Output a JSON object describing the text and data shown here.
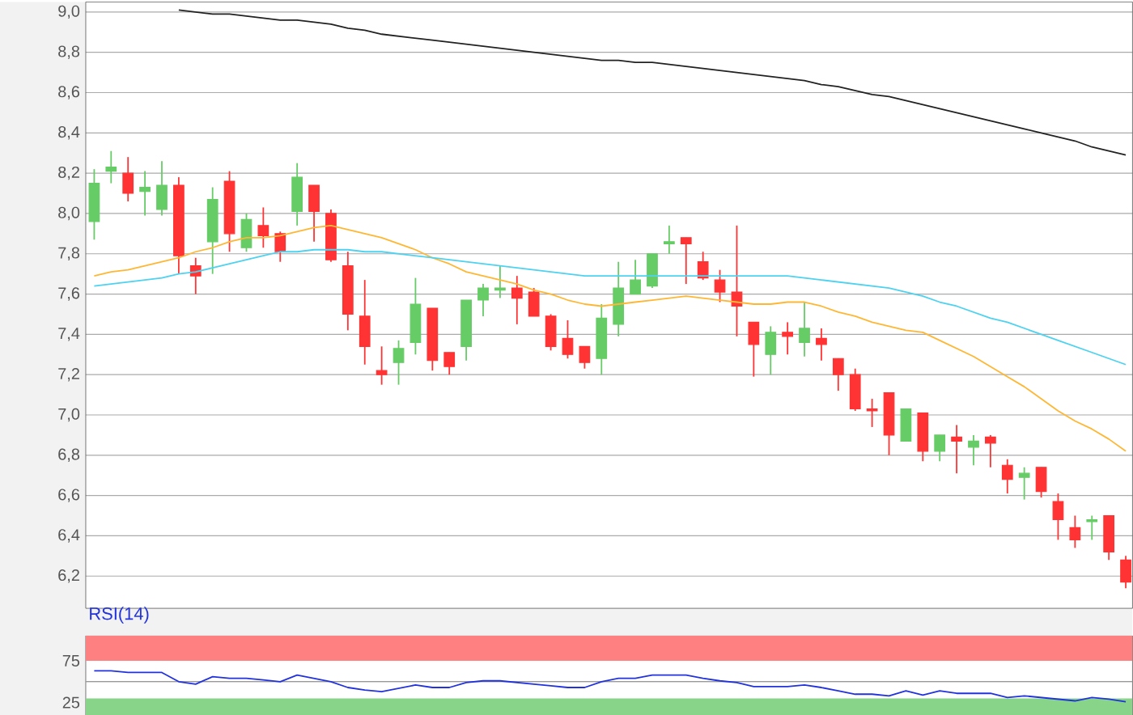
{
  "chart_data": [
    {
      "type": "candlestick",
      "categories": [
        null,
        null,
        null,
        null,
        null,
        null,
        null,
        null,
        null,
        null,
        null,
        null,
        null,
        null,
        null,
        null,
        null,
        null,
        null,
        null,
        null,
        null,
        null,
        null,
        null,
        null,
        null,
        null,
        null,
        null,
        null,
        null,
        null,
        null,
        null,
        null,
        null,
        null,
        null,
        null,
        null,
        null,
        null,
        null,
        null,
        null,
        null,
        null,
        null,
        null,
        null,
        null,
        null,
        null,
        null,
        null,
        null,
        null,
        null,
        null,
        null,
        null
      ],
      "ohlc": [
        [
          7.96,
          8.22,
          7.87,
          8.15
        ],
        [
          8.21,
          8.31,
          8.15,
          8.23
        ],
        [
          8.2,
          8.28,
          8.06,
          8.1
        ],
        [
          8.11,
          8.21,
          7.99,
          8.13
        ],
        [
          8.02,
          8.26,
          7.99,
          8.14
        ],
        [
          8.14,
          8.18,
          7.7,
          7.79
        ],
        [
          7.74,
          7.78,
          7.6,
          7.69
        ],
        [
          7.86,
          8.13,
          7.7,
          8.07
        ],
        [
          8.16,
          8.21,
          7.81,
          7.9
        ],
        [
          7.83,
          8.0,
          7.81,
          7.97
        ],
        [
          7.94,
          8.03,
          7.83,
          7.89
        ],
        [
          7.9,
          7.91,
          7.76,
          7.81
        ],
        [
          8.01,
          8.25,
          7.94,
          8.18
        ],
        [
          8.14,
          8.14,
          7.86,
          8.01
        ],
        [
          8.0,
          8.02,
          7.76,
          7.77
        ],
        [
          7.74,
          7.81,
          7.42,
          7.5
        ],
        [
          7.49,
          7.67,
          7.25,
          7.34
        ],
        [
          7.22,
          7.34,
          7.15,
          7.2
        ],
        [
          7.26,
          7.37,
          7.15,
          7.33
        ],
        [
          7.36,
          7.68,
          7.3,
          7.55
        ],
        [
          7.53,
          7.53,
          7.22,
          7.27
        ],
        [
          7.31,
          7.31,
          7.2,
          7.24
        ],
        [
          7.34,
          7.57,
          7.27,
          7.57
        ],
        [
          7.57,
          7.65,
          7.49,
          7.63
        ],
        [
          7.62,
          7.74,
          7.58,
          7.63
        ],
        [
          7.63,
          7.69,
          7.45,
          7.58
        ],
        [
          7.61,
          7.63,
          7.49,
          7.49
        ],
        [
          7.49,
          7.5,
          7.32,
          7.34
        ],
        [
          7.38,
          7.47,
          7.28,
          7.3
        ],
        [
          7.34,
          7.34,
          7.23,
          7.26
        ],
        [
          7.28,
          7.55,
          7.2,
          7.48
        ],
        [
          7.45,
          7.76,
          7.39,
          7.63
        ],
        [
          7.6,
          7.77,
          7.6,
          7.67
        ],
        [
          7.64,
          7.8,
          7.63,
          7.8
        ],
        [
          7.85,
          7.94,
          7.8,
          7.86
        ],
        [
          7.88,
          7.88,
          7.65,
          7.85
        ],
        [
          7.76,
          7.81,
          7.67,
          7.68
        ],
        [
          7.67,
          7.72,
          7.56,
          7.61
        ],
        [
          7.61,
          7.94,
          7.39,
          7.54
        ],
        [
          7.46,
          7.46,
          7.19,
          7.35
        ],
        [
          7.3,
          7.44,
          7.2,
          7.41
        ],
        [
          7.41,
          7.46,
          7.3,
          7.39
        ],
        [
          7.36,
          7.56,
          7.29,
          7.43
        ],
        [
          7.38,
          7.43,
          7.27,
          7.35
        ],
        [
          7.28,
          7.28,
          7.12,
          7.2
        ],
        [
          7.2,
          7.23,
          7.02,
          7.03
        ],
        [
          7.03,
          7.08,
          6.94,
          7.02
        ],
        [
          7.11,
          7.11,
          6.8,
          6.9
        ],
        [
          6.87,
          7.03,
          6.87,
          7.03
        ],
        [
          7.01,
          7.01,
          6.77,
          6.82
        ],
        [
          6.82,
          6.9,
          6.77,
          6.9
        ],
        [
          6.89,
          6.95,
          6.71,
          6.87
        ],
        [
          6.84,
          6.9,
          6.75,
          6.87
        ],
        [
          6.89,
          6.9,
          6.74,
          6.86
        ],
        [
          6.75,
          6.78,
          6.61,
          6.68
        ],
        [
          6.69,
          6.74,
          6.58,
          6.71
        ],
        [
          6.74,
          6.74,
          6.59,
          6.62
        ],
        [
          6.57,
          6.61,
          6.38,
          6.48
        ],
        [
          6.44,
          6.5,
          6.34,
          6.38
        ],
        [
          6.47,
          6.5,
          6.38,
          6.48
        ],
        [
          6.5,
          6.5,
          6.28,
          6.32
        ],
        [
          6.28,
          6.3,
          6.14,
          6.17
        ]
      ],
      "series": [
        {
          "type": "line",
          "color": "#222222",
          "values": [
            null,
            null,
            null,
            null,
            null,
            9.01,
            9.0,
            8.99,
            8.99,
            8.98,
            8.97,
            8.96,
            8.96,
            8.95,
            8.94,
            8.92,
            8.91,
            8.89,
            8.88,
            8.87,
            8.86,
            8.85,
            8.84,
            8.83,
            8.82,
            8.81,
            8.8,
            8.79,
            8.78,
            8.77,
            8.76,
            8.76,
            8.75,
            8.75,
            8.74,
            8.73,
            8.72,
            8.71,
            8.7,
            8.69,
            8.68,
            8.67,
            8.66,
            8.64,
            8.63,
            8.61,
            8.59,
            8.58,
            8.56,
            8.54,
            8.52,
            8.5,
            8.48,
            8.46,
            8.44,
            8.42,
            8.4,
            8.38,
            8.36,
            8.33,
            8.31,
            8.29
          ]
        },
        {
          "type": "line",
          "color": "#ffb733",
          "values": [
            7.69,
            7.71,
            7.72,
            7.74,
            7.76,
            7.78,
            7.81,
            7.83,
            7.86,
            7.88,
            7.88,
            7.89,
            7.91,
            7.93,
            7.94,
            7.92,
            7.9,
            7.88,
            7.85,
            7.82,
            7.78,
            7.75,
            7.71,
            7.69,
            7.67,
            7.65,
            7.62,
            7.6,
            7.57,
            7.55,
            7.54,
            7.55,
            7.56,
            7.57,
            7.58,
            7.59,
            7.58,
            7.57,
            7.56,
            7.55,
            7.55,
            7.56,
            7.56,
            7.54,
            7.51,
            7.49,
            7.46,
            7.44,
            7.42,
            7.41,
            7.37,
            7.33,
            7.29,
            7.24,
            7.19,
            7.14,
            7.08,
            7.02,
            6.97,
            6.93,
            6.88,
            6.82
          ]
        },
        {
          "type": "line",
          "color": "#4dd2f0",
          "values": [
            7.64,
            7.65,
            7.66,
            7.67,
            7.68,
            7.7,
            7.71,
            7.73,
            7.75,
            7.77,
            7.79,
            7.81,
            7.81,
            7.82,
            7.82,
            7.82,
            7.81,
            7.81,
            7.8,
            7.79,
            7.78,
            7.77,
            7.76,
            7.75,
            7.74,
            7.73,
            7.72,
            7.71,
            7.7,
            7.69,
            7.69,
            7.69,
            7.69,
            7.69,
            7.69,
            7.69,
            7.69,
            7.69,
            7.69,
            7.69,
            7.69,
            7.69,
            7.68,
            7.67,
            7.66,
            7.65,
            7.64,
            7.63,
            7.61,
            7.59,
            7.56,
            7.54,
            7.51,
            7.48,
            7.46,
            7.43,
            7.4,
            7.37,
            7.34,
            7.31,
            7.28,
            7.25
          ]
        }
      ],
      "ylim": [
        6.04,
        9.05
      ],
      "yticks": [
        {
          "value": 6.2,
          "label": "6,2"
        },
        {
          "value": 6.4,
          "label": "6,4"
        },
        {
          "value": 6.6,
          "label": "6,6"
        },
        {
          "value": 6.8,
          "label": "6,8"
        },
        {
          "value": 7.0,
          "label": "7,0"
        },
        {
          "value": 7.2,
          "label": "7,2"
        },
        {
          "value": 7.4,
          "label": "7,4"
        },
        {
          "value": 7.6,
          "label": "7,6"
        },
        {
          "value": 7.8,
          "label": "7,8"
        },
        {
          "value": 8.0,
          "label": "8,0"
        },
        {
          "value": 8.2,
          "label": "8,2"
        },
        {
          "value": 8.4,
          "label": "8,4"
        },
        {
          "value": 8.6,
          "label": "8,6"
        },
        {
          "value": 8.8,
          "label": "8,8"
        },
        {
          "value": 9.0,
          "label": "9,0"
        }
      ],
      "grid": "y",
      "tick_labels": "y"
    },
    {
      "type": "line",
      "title": "RSI(14)",
      "categories": [
        null,
        null,
        null,
        null,
        null,
        null,
        null,
        null,
        null,
        null,
        null,
        null,
        null,
        null,
        null,
        null,
        null,
        null,
        null,
        null,
        null,
        null,
        null,
        null,
        null,
        null,
        null,
        null,
        null,
        null,
        null,
        null,
        null,
        null,
        null,
        null,
        null,
        null,
        null,
        null,
        null,
        null,
        null,
        null,
        null,
        null,
        null,
        null,
        null,
        null,
        null,
        null,
        null,
        null,
        null,
        null,
        null,
        null,
        null,
        null,
        null,
        null
      ],
      "series": [
        {
          "color": "#2233dd",
          "values": [
            63,
            63,
            61,
            61,
            61,
            50,
            47,
            56,
            54,
            54,
            52,
            50,
            58,
            54,
            50,
            43,
            40,
            38,
            42,
            46,
            43,
            43,
            49,
            51,
            51,
            49,
            47,
            45,
            43,
            43,
            50,
            54,
            54,
            58,
            58,
            58,
            54,
            51,
            49,
            44,
            44,
            44,
            46,
            43,
            39,
            35,
            35,
            33,
            39,
            34,
            39,
            36,
            36,
            36,
            31,
            33,
            31,
            29,
            27,
            31,
            29,
            26
          ]
        }
      ],
      "ylim": [
        10,
        105
      ],
      "yticks": [
        25,
        75
      ],
      "bands": [
        {
          "axis": "y",
          "from": 75,
          "to": 105,
          "color": "#ff8080"
        },
        {
          "axis": "y",
          "from": 10,
          "to": 30,
          "color": "#88d488"
        }
      ],
      "ref_lines": [
        {
          "axis": "y",
          "value": 50,
          "color": "#999999"
        }
      ],
      "tick_labels": "y"
    }
  ]
}
